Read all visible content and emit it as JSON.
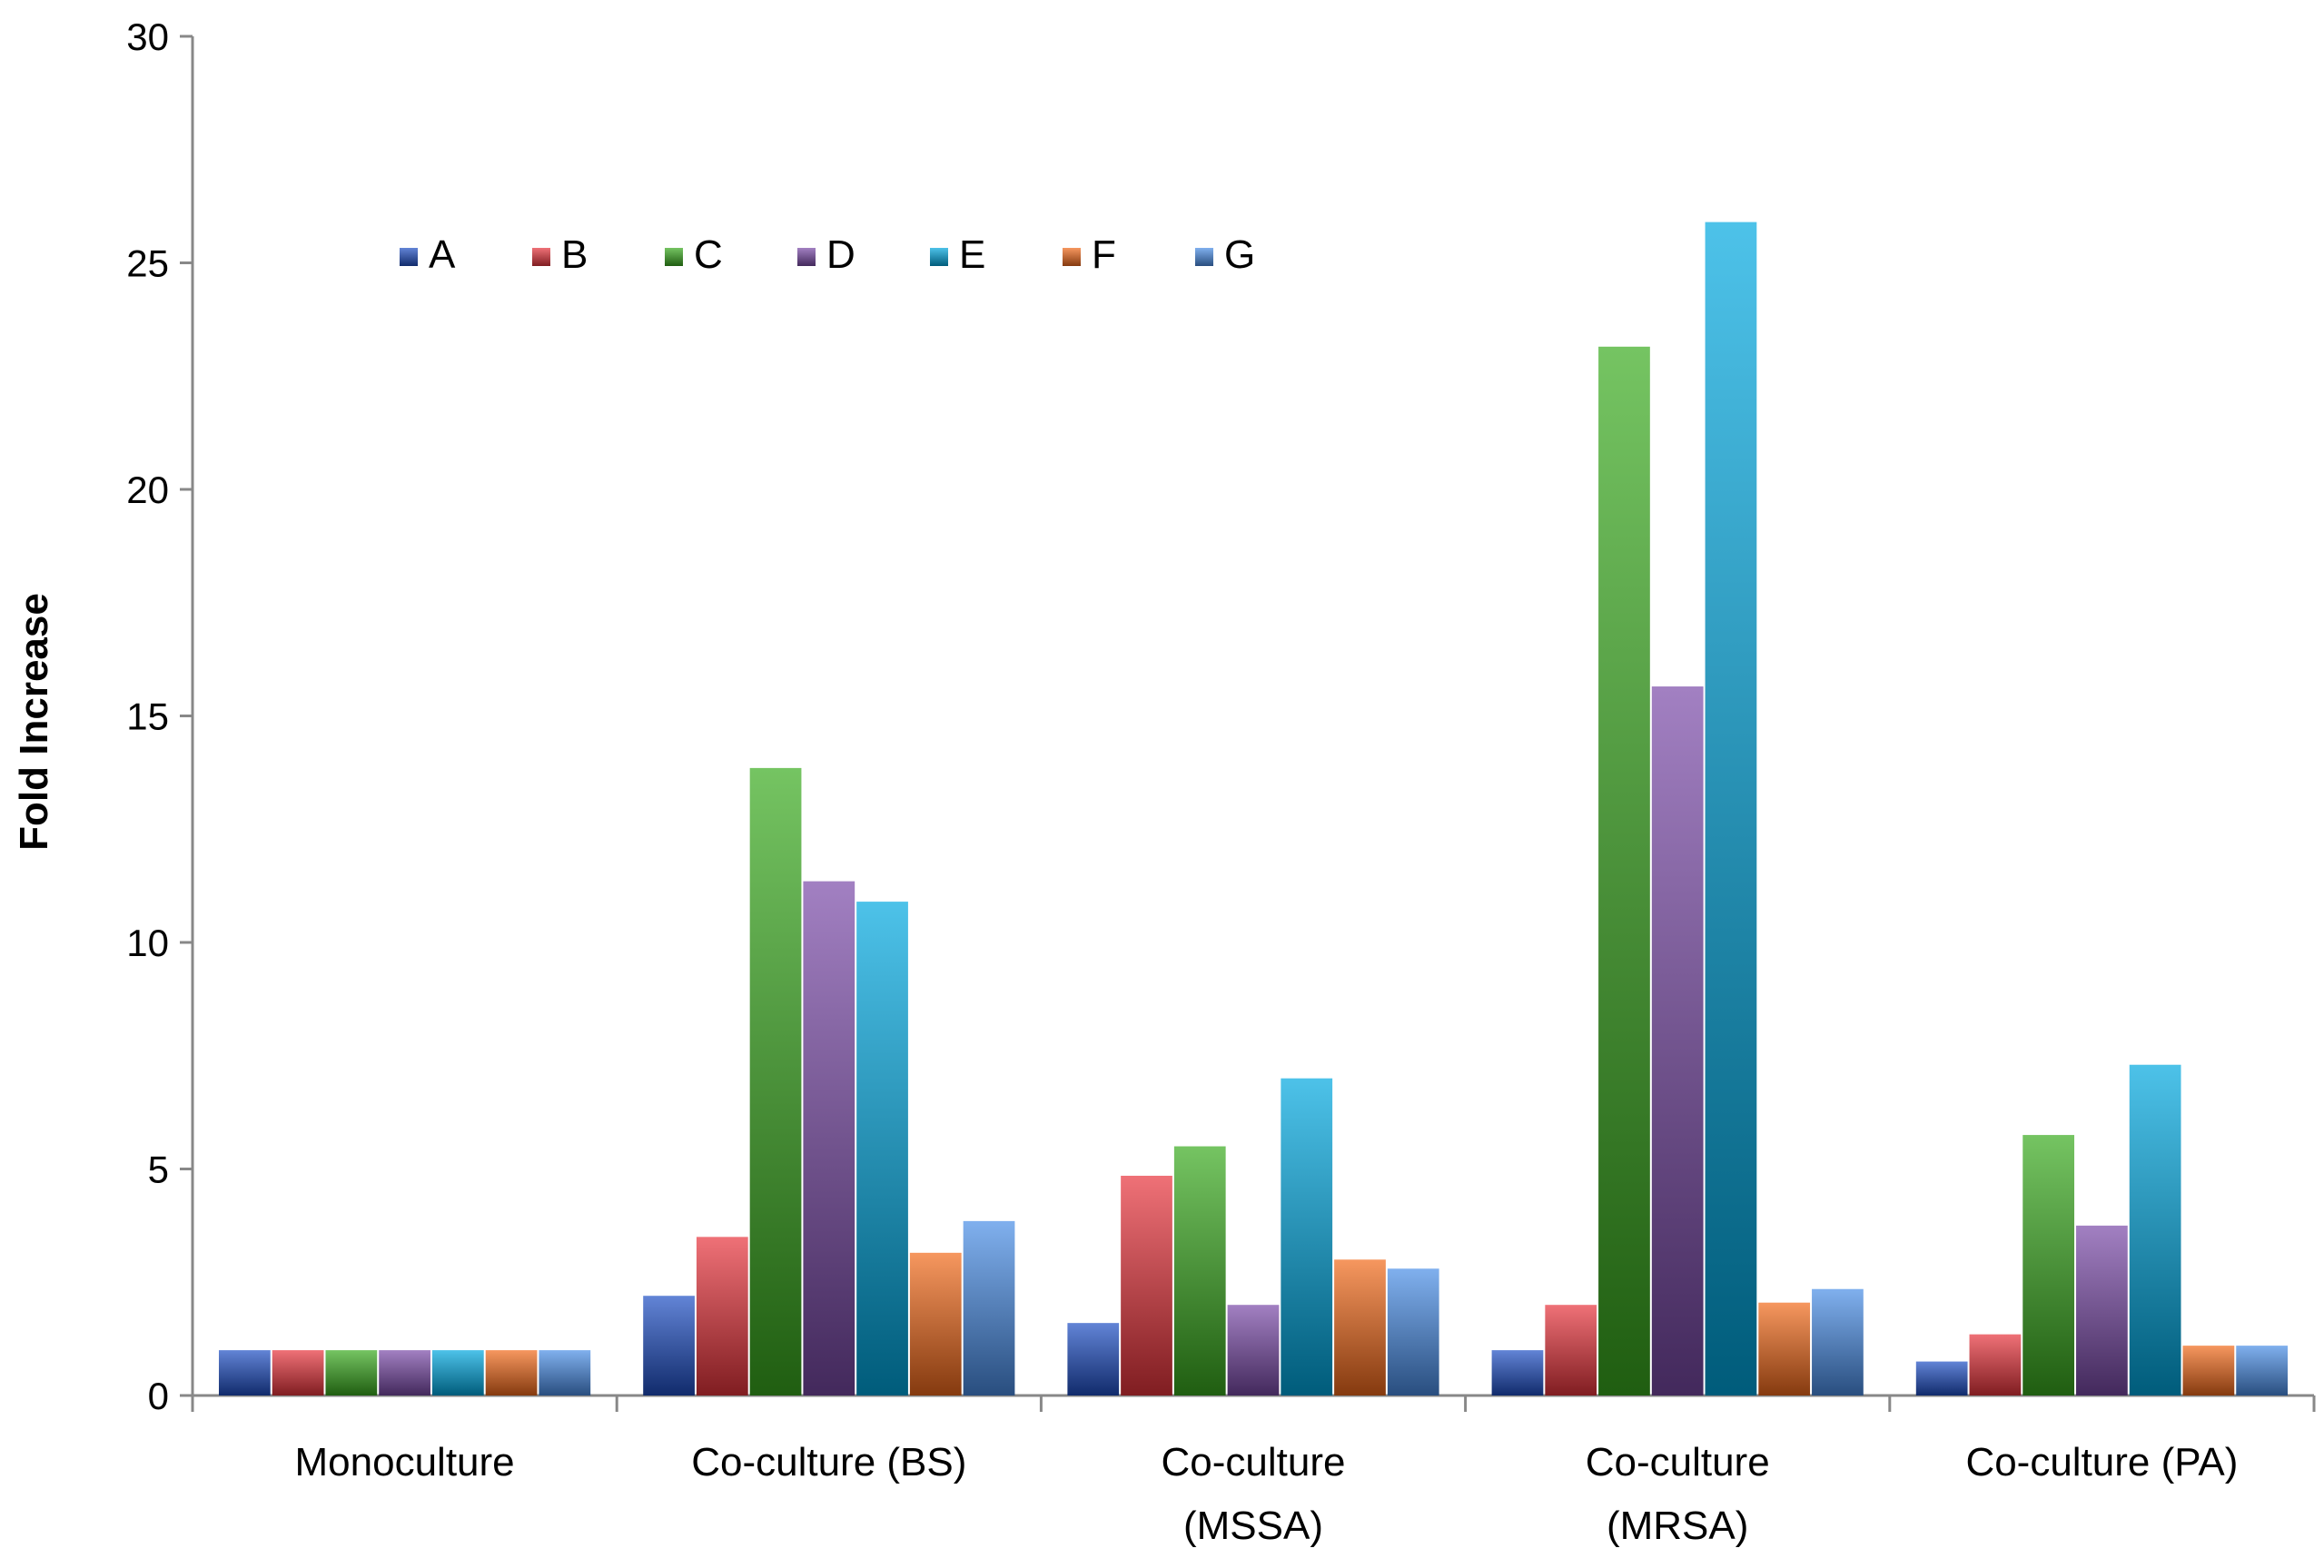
{
  "chart_data": {
    "type": "bar",
    "title": "",
    "xlabel": "",
    "ylabel": "Fold Increase",
    "ylim": [
      0,
      30
    ],
    "yticks": [
      0,
      5,
      10,
      15,
      20,
      25,
      30
    ],
    "grid": false,
    "legend_position": "top-left",
    "categories": [
      [
        "Monoculture"
      ],
      [
        "Co-culture (BS)"
      ],
      [
        "Co-culture",
        "(MSSA)"
      ],
      [
        "Co-culture",
        "(MRSA)"
      ],
      [
        "Co-culture (PA)"
      ]
    ],
    "series": [
      {
        "name": "A",
        "color": "#1f4fc4",
        "values": [
          1.0,
          2.2,
          1.6,
          1.0,
          0.75
        ]
      },
      {
        "name": "B",
        "color": "#e8343c",
        "values": [
          1.0,
          3.5,
          4.85,
          2.0,
          1.35
        ]
      },
      {
        "name": "C",
        "color": "#3aab1e",
        "values": [
          1.0,
          13.85,
          5.5,
          23.15,
          5.75
        ]
      },
      {
        "name": "D",
        "color": "#7a4aa8",
        "values": [
          1.0,
          11.35,
          2.0,
          15.65,
          3.75
        ]
      },
      {
        "name": "E",
        "color": "#00a8df",
        "values": [
          1.0,
          10.9,
          7.0,
          25.9,
          7.3
        ]
      },
      {
        "name": "F",
        "color": "#f26a1b",
        "values": [
          1.0,
          3.15,
          3.0,
          2.05,
          1.1
        ]
      },
      {
        "name": "G",
        "color": "#4a8ee6",
        "values": [
          1.0,
          3.85,
          2.8,
          2.35,
          1.1
        ]
      }
    ]
  }
}
